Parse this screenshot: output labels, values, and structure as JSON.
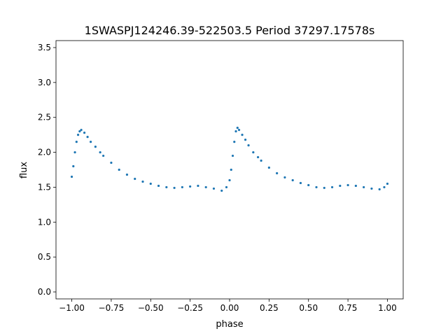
{
  "chart_data": {
    "type": "scatter",
    "title": "1SWASPJ124246.39-522503.5 Period 37297.17578s",
    "xlabel": "phase",
    "ylabel": "flux",
    "xlim": [
      -1.1,
      1.1
    ],
    "ylim": [
      -0.1,
      3.6
    ],
    "xticks": [
      -1.0,
      -0.75,
      -0.5,
      -0.25,
      0.0,
      0.25,
      0.5,
      0.75,
      1.0
    ],
    "xtick_labels": [
      "−1.00",
      "−0.75",
      "−0.50",
      "−0.25",
      "0.00",
      "0.25",
      "0.50",
      "0.75",
      "1.00"
    ],
    "yticks": [
      0.0,
      0.5,
      1.0,
      1.5,
      2.0,
      2.5,
      3.0,
      3.5
    ],
    "ytick_labels": [
      "0.0",
      "0.5",
      "1.0",
      "1.5",
      "2.0",
      "2.5",
      "3.0",
      "3.5"
    ],
    "grid": false,
    "marker_color": "#1f77b4",
    "series": [
      {
        "x": [
          -1.0,
          -0.99,
          -0.98,
          -0.97,
          -0.96,
          -0.95,
          -0.94,
          -0.92,
          -0.9,
          -0.88,
          -0.85,
          -0.82,
          -0.8,
          -0.75,
          -0.7,
          -0.65,
          -0.6,
          -0.55,
          -0.5,
          -0.45,
          -0.4,
          -0.35,
          -0.3,
          -0.25,
          -0.2,
          -0.15,
          -0.1,
          -0.05,
          -0.02,
          0.0,
          0.01,
          0.02,
          0.03,
          0.04,
          0.05,
          0.06,
          0.08,
          0.1,
          0.12,
          0.15,
          0.18,
          0.2,
          0.25,
          0.3,
          0.35,
          0.4,
          0.45,
          0.5,
          0.55,
          0.6,
          0.65,
          0.7,
          0.75,
          0.8,
          0.85,
          0.9,
          0.95,
          0.98,
          1.0
        ],
        "y": [
          1.65,
          1.8,
          2.0,
          2.15,
          2.25,
          2.3,
          2.32,
          2.28,
          2.22,
          2.15,
          2.08,
          2.0,
          1.95,
          1.85,
          1.75,
          1.68,
          1.62,
          1.58,
          1.55,
          1.52,
          1.5,
          1.49,
          1.5,
          1.51,
          1.52,
          1.5,
          1.48,
          1.45,
          1.5,
          1.6,
          1.75,
          1.95,
          2.15,
          2.3,
          2.35,
          2.32,
          2.25,
          2.18,
          2.1,
          2.0,
          1.93,
          1.88,
          1.78,
          1.7,
          1.64,
          1.6,
          1.56,
          1.53,
          1.5,
          1.49,
          1.5,
          1.52,
          1.53,
          1.52,
          1.5,
          1.48,
          1.47,
          1.5,
          1.55
        ]
      }
    ]
  }
}
